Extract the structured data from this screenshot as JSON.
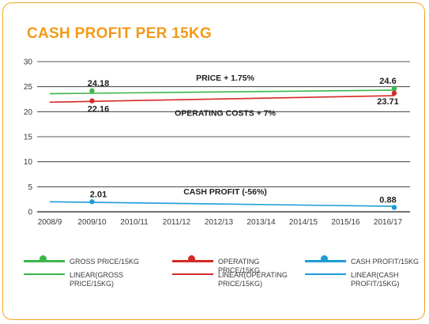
{
  "title": "CASH PROFIT PER 15KG",
  "colors": {
    "border": "#f3a51d",
    "title": "#f39a18",
    "gross": "#3cb54a",
    "operating": "#d42a26",
    "cash": "#1e9cd7",
    "grid": "#222222"
  },
  "chart_data": {
    "type": "line",
    "categories": [
      "2008/9",
      "2009/10",
      "2010/11",
      "2011/12",
      "2012/13",
      "2013/14",
      "2014/15",
      "2015/16",
      "2016/17"
    ],
    "ylim": [
      0,
      30
    ],
    "yticks": [
      "0",
      "5",
      "10",
      "15",
      "20",
      "25",
      "30"
    ],
    "grid": true,
    "series": [
      {
        "name": "GROSS PRICE/15KG",
        "key": "gross",
        "points": [
          {
            "x": "2009/10",
            "y": 24.18
          },
          {
            "x": "2016/17",
            "y": 24.6
          }
        ]
      },
      {
        "name": "OPERATING PRICE/15KG",
        "key": "operating",
        "points": [
          {
            "x": "2009/10",
            "y": 22.16
          },
          {
            "x": "2016/17",
            "y": 23.71
          }
        ]
      },
      {
        "name": "CASH PROFIT/15KG",
        "key": "cash",
        "points": [
          {
            "x": "2009/10",
            "y": 2.01
          },
          {
            "x": "2016/17",
            "y": 0.88
          }
        ]
      }
    ],
    "trendlines": [
      {
        "name": "LINEAR(GROSS PRICE/15KG)",
        "key": "gross",
        "from": {
          "x": "2008/9",
          "y": 23.6
        },
        "to": {
          "x": "2016/17",
          "y": 24.3
        }
      },
      {
        "name": "LINEAR(OPERATING PRICE/15KG)",
        "key": "operating",
        "from": {
          "x": "2008/9",
          "y": 21.9
        },
        "to": {
          "x": "2016/17",
          "y": 23.2
        }
      },
      {
        "name": "LINEAR(CASH PROFIT/15KG)",
        "key": "cash",
        "from": {
          "x": "2008/9",
          "y": 2.0
        },
        "to": {
          "x": "2016/17",
          "y": 1.1
        }
      }
    ],
    "data_labels": [
      {
        "text": "24.18",
        "x": "2009/10",
        "y": 24.18,
        "pos": "above"
      },
      {
        "text": "22.16",
        "x": "2009/10",
        "y": 22.16,
        "pos": "below"
      },
      {
        "text": "2.01",
        "x": "2009/10",
        "y": 2.01,
        "pos": "above"
      },
      {
        "text": "24.6",
        "x": "2016/17",
        "y": 24.6,
        "pos": "above"
      },
      {
        "text": "23.71",
        "x": "2016/17",
        "y": 23.71,
        "pos": "below"
      },
      {
        "text": "0.88",
        "x": "2016/17",
        "y": 0.88,
        "pos": "above"
      }
    ],
    "annotations": [
      {
        "text": "PRICE + 1.75%",
        "x": "2012/13",
        "y": 26.2
      },
      {
        "text": "OPERATING COSTS + 7%",
        "x": "2012/13",
        "y": 19.2
      },
      {
        "text": "CASH PROFIT (-56%)",
        "x": "2012/13",
        "y": 3.5
      }
    ]
  },
  "legend": [
    {
      "label": "GROSS PRICE/15KG",
      "key": "gross",
      "marker": true
    },
    {
      "label": "OPERATING PRICE/15KG",
      "key": "operating",
      "marker": true
    },
    {
      "label": "CASH PROFIT/15KG",
      "key": "cash",
      "marker": true
    },
    {
      "label": "LINEAR(GROSS PRICE/15KG)",
      "key": "gross",
      "marker": false
    },
    {
      "label": "LINEAR(OPERATING PRICE/15KG)",
      "key": "operating",
      "marker": false
    },
    {
      "label": "LINEAR(CASH PROFIT/15KG)",
      "key": "cash",
      "marker": false
    }
  ]
}
